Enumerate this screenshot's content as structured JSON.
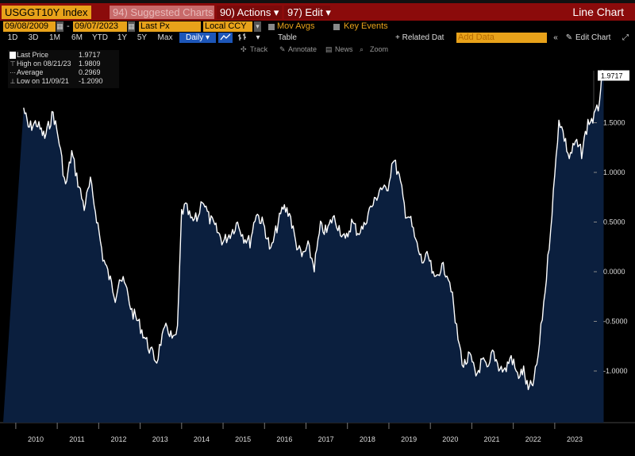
{
  "header": {
    "ticker": "USGGT10Y Index",
    "suggested": "94) Suggested Charts",
    "actions": "90) Actions ▾",
    "edit": "97) Edit ▾",
    "view_title": "Line Chart"
  },
  "controls": {
    "start_date": "09/08/2009",
    "end_date": "09/07/2023",
    "date_sep": "-",
    "field": "Last Px",
    "currency": "Local CCY",
    "mov_avgs": "Mov Avgs",
    "key_events": "Key Events",
    "ranges": [
      "1D",
      "3D",
      "1M",
      "6M",
      "YTD",
      "1Y",
      "5Y",
      "Max"
    ],
    "frequency": "Daily ▾",
    "table_label": "Table",
    "related": "+ Related Dat",
    "add_data_placeholder": "Add Data",
    "edit_chart": "Edit Chart",
    "tools": [
      "Track",
      "Annotate",
      "News",
      "Zoom"
    ]
  },
  "legend": {
    "rows": [
      {
        "label": "Last Price",
        "value": "1.9717"
      },
      {
        "label": "High on 08/21/23",
        "value": "1.9809"
      },
      {
        "label": "Average",
        "value": "0.2969"
      },
      {
        "label": "Low on 11/09/21",
        "value": "-1.2090"
      }
    ]
  },
  "colors": {
    "titlebar": "#8b0b0b",
    "field_orange": "#e8a21a",
    "area_fill": "#0b1f3e",
    "line": "#ffffff",
    "selected_blue": "#1d56b8"
  },
  "chart_data": {
    "type": "area",
    "title": "",
    "xlabel": "",
    "ylabel": "",
    "x_ticks": [
      "2010",
      "2011",
      "2012",
      "2013",
      "2014",
      "2015",
      "2016",
      "2017",
      "2018",
      "2019",
      "2020",
      "2021",
      "2022",
      "2023"
    ],
    "y_ticks": [
      "1.5000",
      "1.0000",
      "0.5000",
      "0.0000",
      "-0.5000",
      "-1.0000"
    ],
    "ylim": [
      -1.5,
      2.0
    ],
    "last_value_label": "1.9717",
    "grid": false,
    "legend_position": "top-left",
    "series": [
      {
        "x": [
          2009.69,
          2009.8,
          2010.0,
          2010.2,
          2010.4,
          2010.55,
          2010.7,
          2010.85,
          2011.0,
          2011.15,
          2011.3,
          2011.45,
          2011.6,
          2011.75,
          2011.9,
          2012.0,
          2012.15,
          2012.3,
          2012.45,
          2012.6,
          2012.75,
          2012.9,
          2013.0,
          2013.15,
          2013.3,
          2013.4,
          2013.5,
          2013.6,
          2013.75,
          2013.9,
          2014.0,
          2014.15,
          2014.3,
          2014.5,
          2014.7,
          2014.85,
          2015.0,
          2015.15,
          2015.3,
          2015.5,
          2015.65,
          2015.8,
          2015.95,
          2016.1,
          2016.25,
          2016.4,
          2016.55,
          2016.7,
          2016.85,
          2017.0,
          2017.15,
          2017.3,
          2017.45,
          2017.6,
          2017.75,
          2017.9,
          2018.0,
          2018.15,
          2018.3,
          2018.45,
          2018.6,
          2018.75,
          2018.9,
          2019.0,
          2019.15,
          2019.3,
          2019.45,
          2019.6,
          2019.75,
          2019.9,
          2020.0,
          2020.1,
          2020.2,
          2020.3,
          2020.45,
          2020.6,
          2020.75,
          2020.9,
          2021.0,
          2021.15,
          2021.3,
          2021.45,
          2021.6,
          2021.75,
          2021.86,
          2022.0,
          2022.1,
          2022.2,
          2022.3,
          2022.4,
          2022.5,
          2022.6,
          2022.7,
          2022.85,
          2023.0,
          2023.15,
          2023.3,
          2023.45,
          2023.55,
          2023.64,
          2023.68
        ],
        "y": [
          1.65,
          1.45,
          1.5,
          1.35,
          1.6,
          1.3,
          0.85,
          1.2,
          0.9,
          0.65,
          0.9,
          0.55,
          0.15,
          -0.05,
          -0.25,
          -0.05,
          -0.15,
          -0.4,
          -0.5,
          -0.65,
          -0.8,
          -0.9,
          -0.7,
          -0.55,
          -0.7,
          -0.6,
          0.6,
          0.65,
          0.5,
          0.55,
          0.75,
          0.55,
          0.45,
          0.3,
          0.4,
          0.5,
          0.35,
          0.3,
          0.6,
          0.45,
          0.2,
          0.45,
          0.65,
          0.6,
          0.3,
          0.15,
          0.25,
          0.05,
          0.45,
          0.4,
          0.55,
          0.45,
          0.3,
          0.5,
          0.4,
          0.45,
          0.6,
          0.7,
          0.85,
          0.8,
          1.15,
          0.95,
          0.6,
          0.55,
          0.3,
          0.1,
          0.15,
          -0.1,
          0.05,
          0.0,
          -0.15,
          -0.5,
          -0.75,
          -0.95,
          -0.85,
          -1.05,
          -0.9,
          -1.0,
          -0.8,
          -0.95,
          -1.0,
          -0.85,
          -1.05,
          -1.0,
          -1.2,
          -1.1,
          -0.85,
          -0.45,
          -0.05,
          0.45,
          0.95,
          1.55,
          1.4,
          1.15,
          1.3,
          1.2,
          1.5,
          1.55,
          1.65,
          1.98,
          1.9717
        ]
      }
    ]
  }
}
